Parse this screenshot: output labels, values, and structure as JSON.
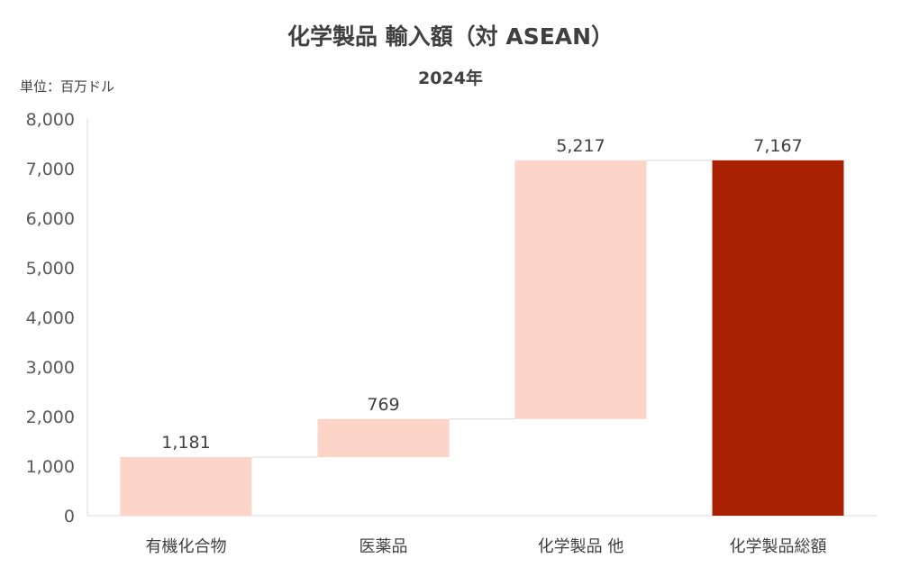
{
  "chart_data": {
    "type": "bar",
    "subtype": "waterfall",
    "title": "化学製品 輸入額（対 ASEAN）",
    "subtitle": "2024年",
    "unit_label": "単位：百万ドル",
    "categories": [
      "有機化合物",
      "医薬品",
      "化学製品 他",
      "化学製品総額"
    ],
    "values": [
      1181,
      769,
      5217,
      7167
    ],
    "data_labels": [
      "1,181",
      "769",
      "5,217",
      "7,167"
    ],
    "is_total": [
      false,
      false,
      false,
      true
    ],
    "ylim": [
      0,
      8000
    ],
    "yticks": [
      0,
      1000,
      2000,
      3000,
      4000,
      5000,
      6000,
      7000,
      8000
    ],
    "ytick_labels": [
      "0",
      "1,000",
      "2,000",
      "3,000",
      "4,000",
      "5,000",
      "6,000",
      "7,000",
      "8,000"
    ],
    "grid": false,
    "colors": {
      "increment": "#FDD4C8",
      "total": "#A82201",
      "connector": "#D9D9D9",
      "axis": "#D9D9D9"
    }
  }
}
